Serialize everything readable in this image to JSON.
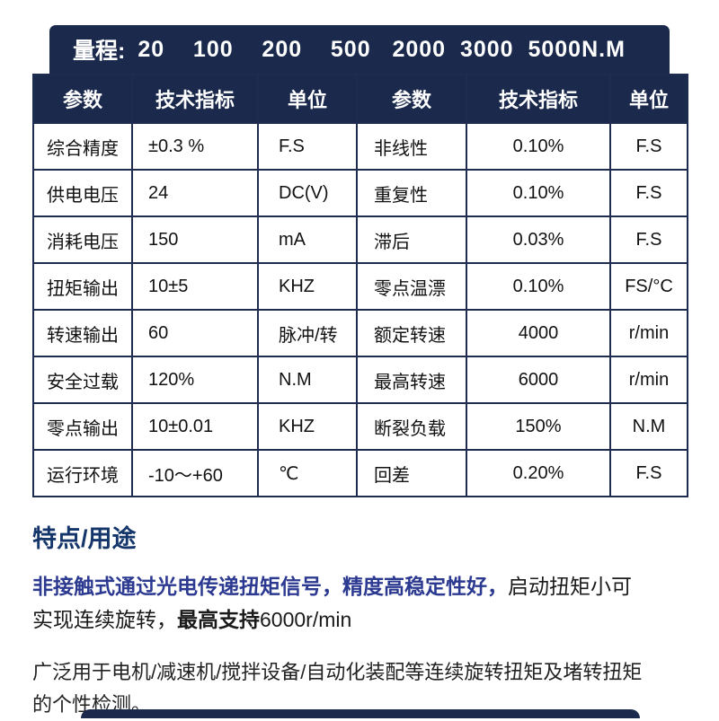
{
  "banner": {
    "label": "量程:",
    "values": "20    100    200    500   2000  3000  5000N.M"
  },
  "table": {
    "headers": [
      "参数",
      "技术指标",
      "单位",
      "参数",
      "技术指标",
      "单位"
    ],
    "rows": [
      [
        "综合精度",
        "±0.3 %",
        "F.S",
        "非线性",
        "0.10%",
        "F.S"
      ],
      [
        "供电电压",
        "24",
        "DC(V)",
        "重复性",
        "0.10%",
        "F.S"
      ],
      [
        "消耗电压",
        "150",
        "mA",
        "滞后",
        "0.03%",
        "F.S"
      ],
      [
        "扭矩输出",
        "10±5",
        "KHZ",
        "零点温漂",
        "0.10%",
        "FS/°C"
      ],
      [
        "转速输出",
        "60",
        "脉冲/转",
        "额定转速",
        "4000",
        "r/min"
      ],
      [
        "安全过载",
        "120%",
        "N.M",
        "最高转速",
        "6000",
        "r/min"
      ],
      [
        "零点输出",
        "10±0.01",
        "KHZ",
        "断裂负载",
        "150%",
        "N.M"
      ],
      [
        "运行环境",
        "-10～+60",
        "℃",
        "回差",
        "0.20%",
        "F.S"
      ]
    ]
  },
  "features": {
    "title": "特点/用途",
    "paragraph1": {
      "line1_highlight": "非接触式通过光电传递扭矩信号，精度高稳定性好，",
      "line1_normal": "启动扭矩小可",
      "line2_normal": "实现连续旋转，",
      "line2_bold": "最高支持",
      "line2_tail": "6000r/min"
    },
    "paragraph2": "广泛用于电机/减速机/搅拌设备/自动化装配等连续旋转扭矩及堵转扭矩的个性检测。"
  },
  "colors": {
    "navy": "#1b2a4c",
    "highlight_blue": "#2b3990",
    "heading_blue": "#14366b"
  }
}
